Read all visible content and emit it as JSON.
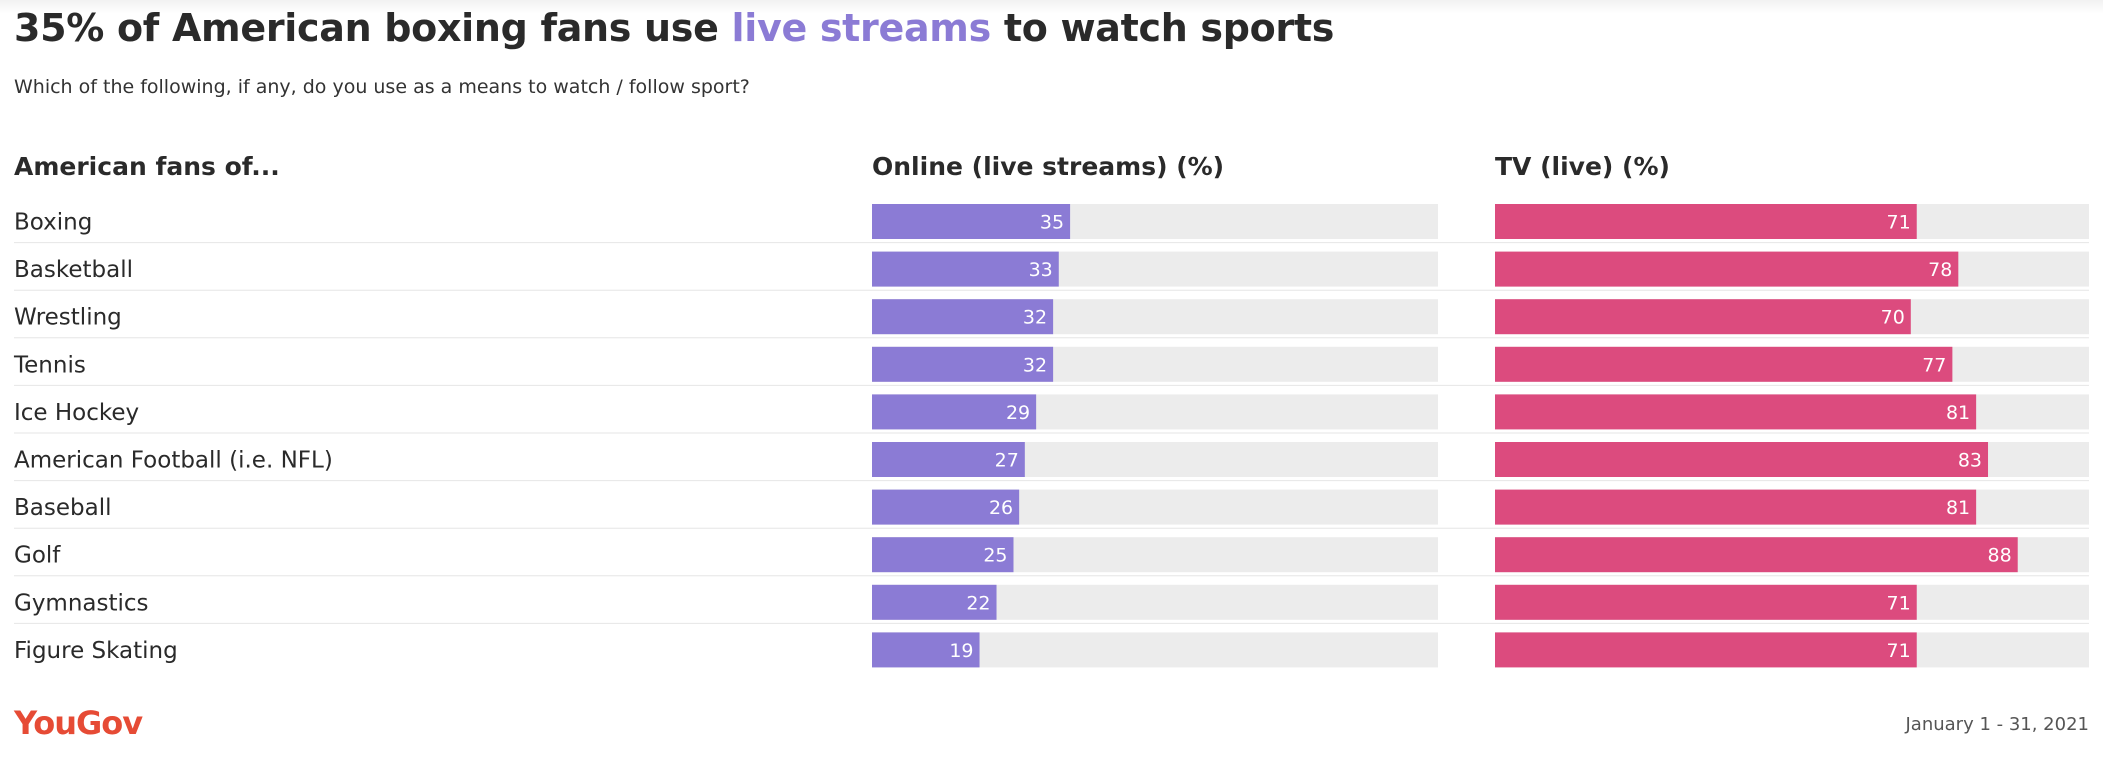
{
  "header": {
    "title_pre": "35% of American boxing fans use ",
    "title_highlight": "live streams",
    "title_post": " to watch sports",
    "subtitle": "Which of the following, if any, do you use as a means to watch / follow sport?"
  },
  "footer": {
    "logo": "YouGov",
    "date": "January 1 - 31, 2021"
  },
  "chart_data": {
    "type": "bar",
    "orientation": "horizontal",
    "category_header": "American fans of...",
    "categories": [
      "Boxing",
      "Basketball",
      "Wrestling",
      "Tennis",
      "Ice Hockey",
      "American Football (i.e. NFL)",
      "Baseball",
      "Golf",
      "Gymnastics",
      "Figure Skating"
    ],
    "series": [
      {
        "name": "Online (live streams) (%)",
        "color": "#8b7bd5",
        "values": [
          35,
          33,
          32,
          32,
          29,
          27,
          26,
          25,
          22,
          19
        ]
      },
      {
        "name": "TV (live) (%)",
        "color": "#dc4b7e",
        "values": [
          71,
          78,
          70,
          77,
          81,
          83,
          81,
          88,
          71,
          71
        ]
      }
    ],
    "xlim": [
      0,
      100
    ],
    "track_color": "#ececec"
  }
}
